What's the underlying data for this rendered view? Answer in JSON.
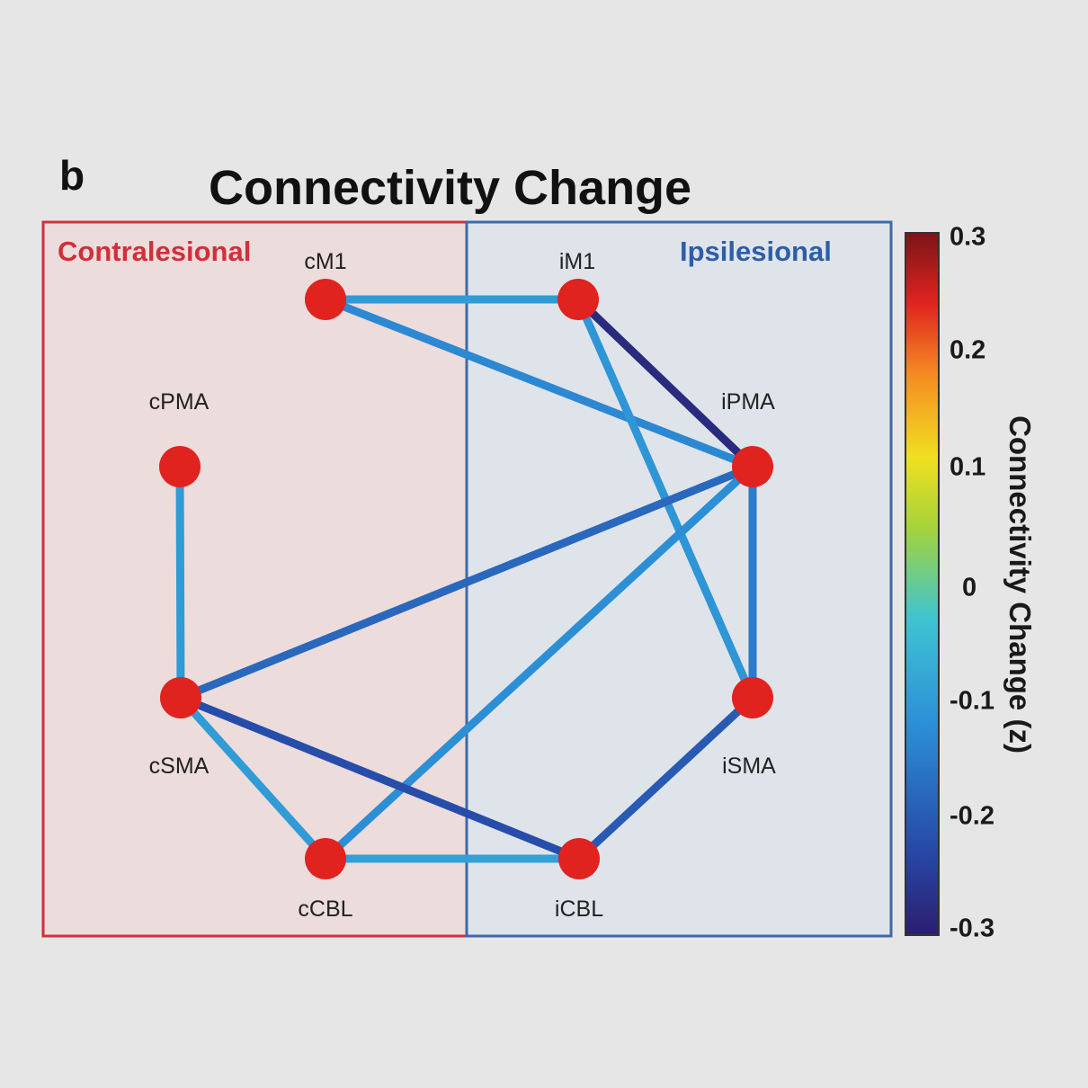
{
  "panel_letter": "b",
  "title": "Connectivity Change",
  "regions": {
    "left_label": "Contralesional",
    "right_label": "Ipsilesional",
    "left_color": "#d0303a",
    "right_color": "#2d5ea8"
  },
  "nodes": [
    {
      "id": "cM1",
      "label": "cM1"
    },
    {
      "id": "iM1",
      "label": "iM1"
    },
    {
      "id": "cPMA",
      "label": "cPMA"
    },
    {
      "id": "iPMA",
      "label": "iPMA"
    },
    {
      "id": "cSMA",
      "label": "cSMA"
    },
    {
      "id": "iSMA",
      "label": "iSMA"
    },
    {
      "id": "cCBL",
      "label": "cCBL"
    },
    {
      "id": "iCBL",
      "label": "iCBL"
    }
  ],
  "node_color": "#e0231f",
  "edges": [
    {
      "source": "cM1",
      "target": "iM1",
      "value": -0.1
    },
    {
      "source": "cM1",
      "target": "iPMA",
      "value": -0.13
    },
    {
      "source": "iM1",
      "target": "iPMA",
      "value": -0.28
    },
    {
      "source": "iM1",
      "target": "iSMA",
      "value": -0.11
    },
    {
      "source": "cPMA",
      "target": "cSMA",
      "value": -0.1
    },
    {
      "source": "iPMA",
      "target": "cSMA",
      "value": -0.18
    },
    {
      "source": "iPMA",
      "target": "cCBL",
      "value": -0.12
    },
    {
      "source": "iPMA",
      "target": "iSMA",
      "value": -0.15
    },
    {
      "source": "cSMA",
      "target": "iCBL",
      "value": -0.22
    },
    {
      "source": "cSMA",
      "target": "cCBL",
      "value": -0.1
    },
    {
      "source": "cCBL",
      "target": "iCBL",
      "value": -0.09
    },
    {
      "source": "iSMA",
      "target": "iCBL",
      "value": -0.2
    }
  ],
  "colorbar": {
    "title": "Connectivity Change (z)",
    "min": -0.3,
    "max": 0.3,
    "tick_labels": [
      "0.3",
      "0.2",
      "0.1",
      "0",
      "-0.1",
      "-0.2",
      "-0.3"
    ]
  }
}
